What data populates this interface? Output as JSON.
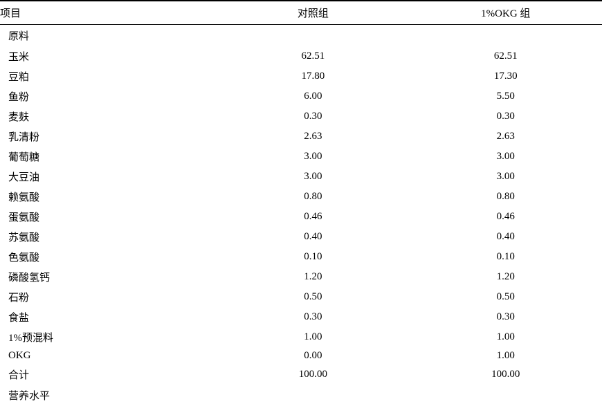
{
  "columns": {
    "label": "项目",
    "val1": "对照组",
    "val2": "1%OKG 组"
  },
  "sections": [
    {
      "title": "原料"
    }
  ],
  "rows": [
    {
      "label": "玉米",
      "v1": "62.51",
      "v2": "62.51"
    },
    {
      "label": "豆粕",
      "v1": "17.80",
      "v2": "17.30"
    },
    {
      "label": "鱼粉",
      "v1": "6.00",
      "v2": "5.50"
    },
    {
      "label": "麦麸",
      "v1": "0.30",
      "v2": "0.30"
    },
    {
      "label": "乳清粉",
      "v1": "2.63",
      "v2": "2.63"
    },
    {
      "label": "葡萄糖",
      "v1": "3.00",
      "v2": "3.00"
    },
    {
      "label": "大豆油",
      "v1": "3.00",
      "v2": "3.00"
    },
    {
      "label": "赖氨酸",
      "v1": "0.80",
      "v2": "0.80"
    },
    {
      "label": "蛋氨酸",
      "v1": "0.46",
      "v2": "0.46"
    },
    {
      "label": "苏氨酸",
      "v1": "0.40",
      "v2": "0.40"
    },
    {
      "label": "色氨酸",
      "v1": "0.10",
      "v2": "0.10"
    },
    {
      "label": "磷酸氢钙",
      "v1": "1.20",
      "v2": "1.20"
    },
    {
      "label": "石粉",
      "v1": "0.50",
      "v2": "0.50"
    },
    {
      "label": "食盐",
      "v1": "0.30",
      "v2": "0.30"
    },
    {
      "label": "1%预混料",
      "v1": "1.00",
      "v2": "1.00"
    },
    {
      "label": "OKG",
      "v1": "0.00",
      "v2": "1.00"
    },
    {
      "label": "合计",
      "v1": "100.00",
      "v2": "100.00"
    }
  ],
  "trailing_section": {
    "title": "营养水平"
  },
  "styling": {
    "background_color": "#ffffff",
    "text_color": "#000000",
    "header_top_border_width": 2,
    "header_bottom_border_width": 1,
    "font_size": 15,
    "font_family": "SimSun"
  }
}
